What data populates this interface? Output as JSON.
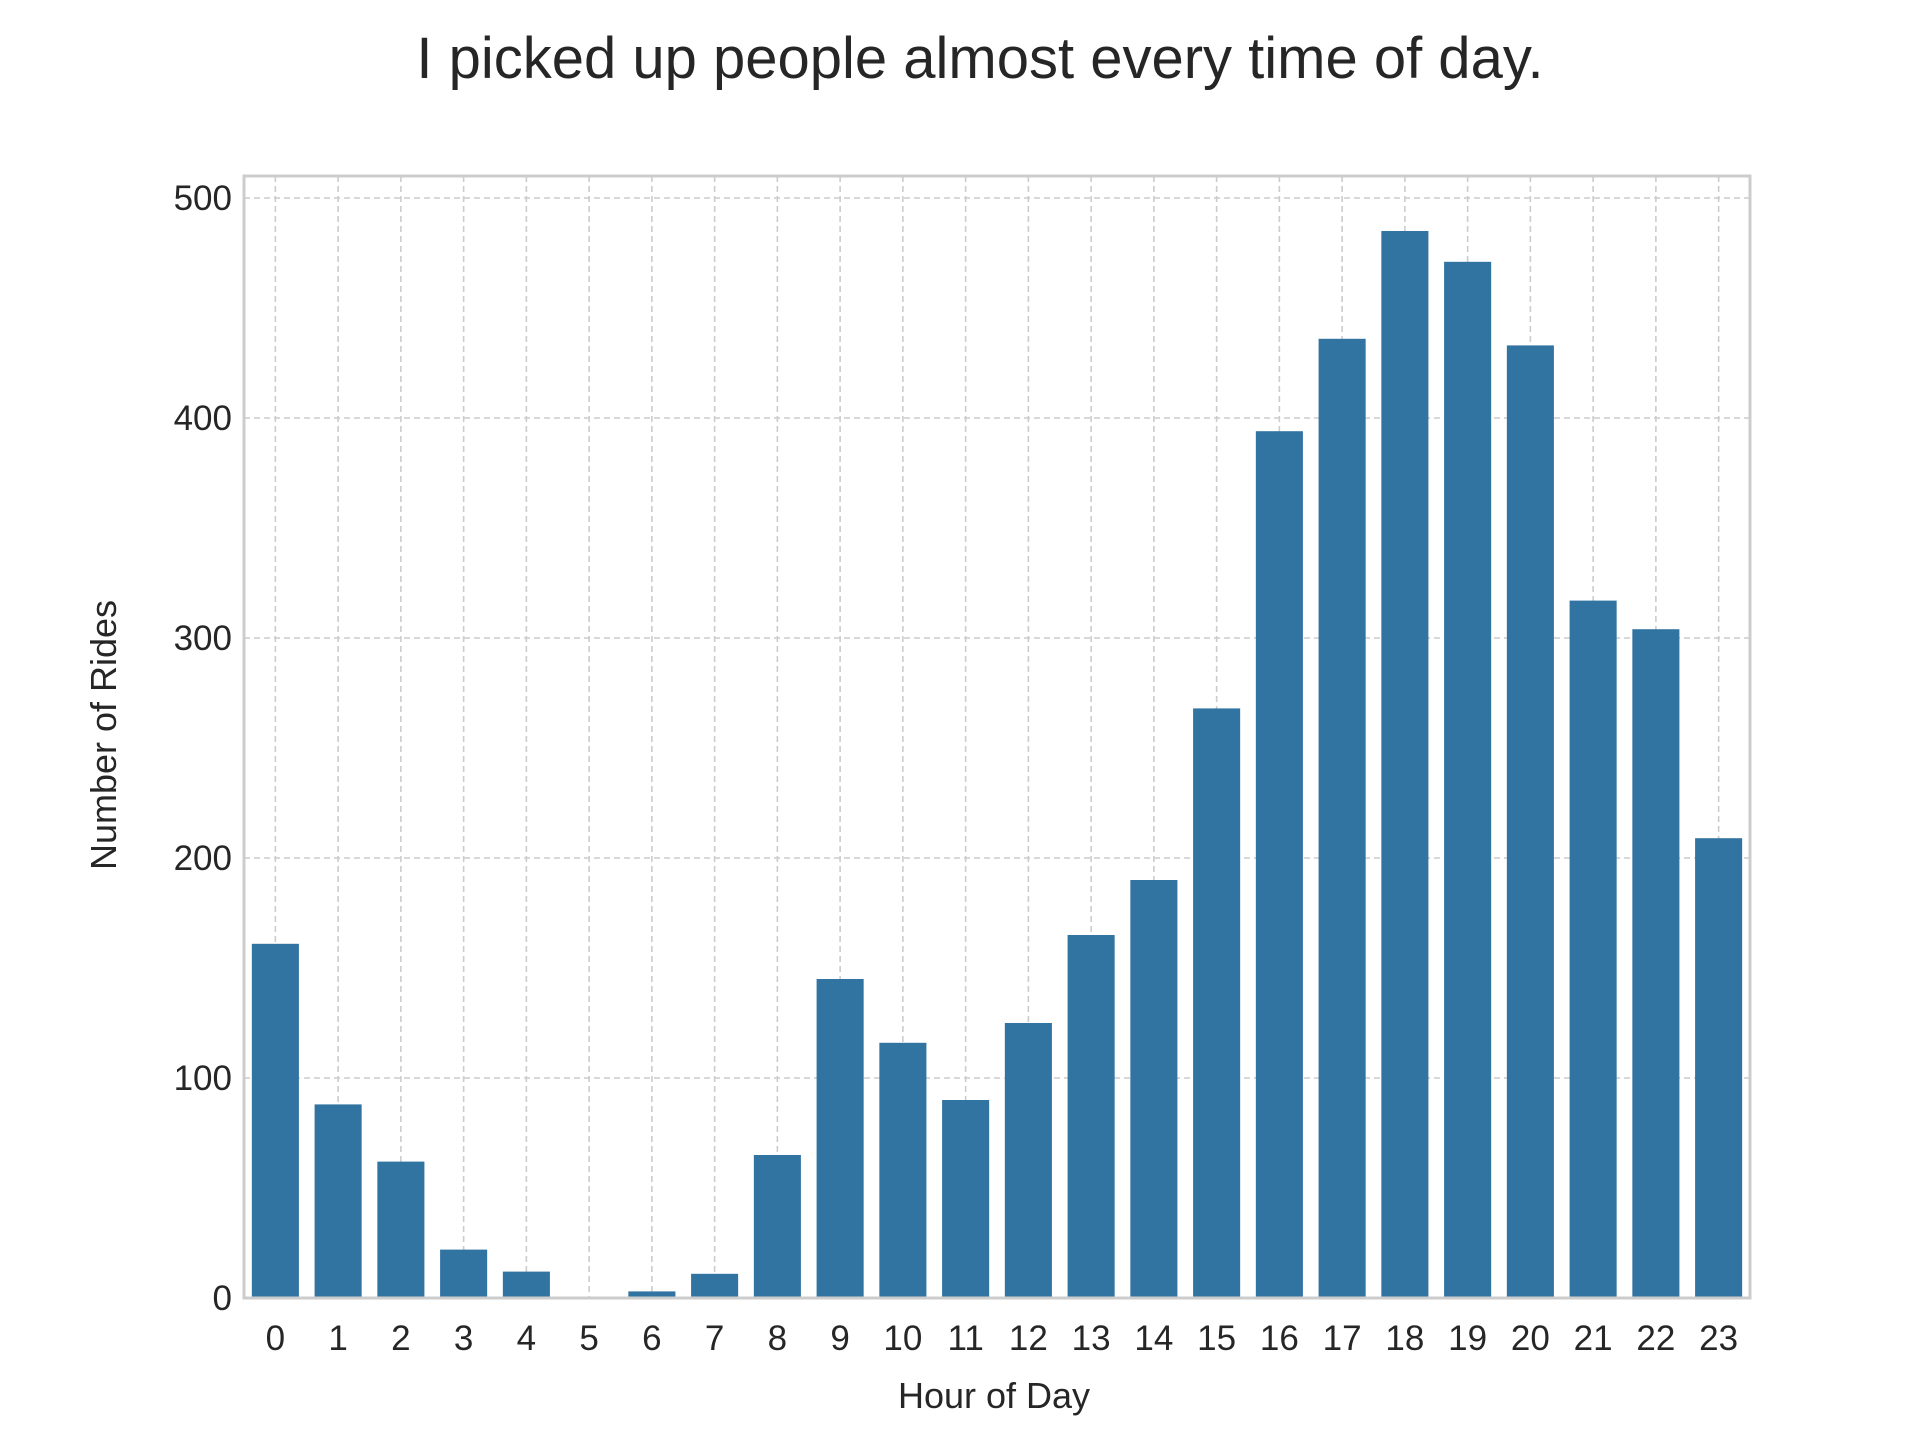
{
  "chart_data": {
    "type": "bar",
    "title": "I picked up people almost every time of day.",
    "xlabel": "Hour of Day",
    "ylabel": "Number of Rides",
    "categories": [
      "0",
      "1",
      "2",
      "3",
      "4",
      "5",
      "6",
      "7",
      "8",
      "9",
      "10",
      "11",
      "12",
      "13",
      "14",
      "15",
      "16",
      "17",
      "18",
      "19",
      "20",
      "21",
      "22",
      "23"
    ],
    "values": [
      161,
      88,
      62,
      22,
      12,
      0,
      3,
      11,
      65,
      145,
      116,
      90,
      125,
      165,
      190,
      268,
      394,
      436,
      485,
      471,
      433,
      317,
      304,
      209
    ],
    "ylim": [
      0,
      510
    ],
    "yticks": [
      0,
      100,
      200,
      300,
      400,
      500
    ],
    "grid": true,
    "legend": "none",
    "bar_color": "#3274a1",
    "grid_color": "#cccccc",
    "frame_color": "#cccccc"
  }
}
